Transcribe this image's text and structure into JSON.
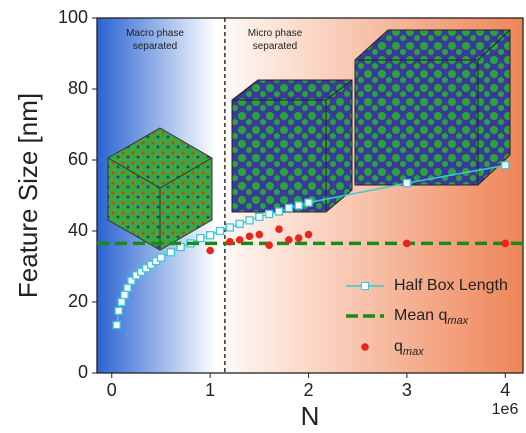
{
  "chart_data": {
    "type": "line",
    "xlabel": "N",
    "ylabel": "Feature Size [nm]",
    "x_offset_label": "1e6",
    "annotations": [
      "Macro phase\nseparated",
      "Micro phase\nseparated"
    ],
    "boundary_x": 1.15,
    "xlim": [
      -0.15,
      4.18
    ],
    "xticks": [
      0,
      1,
      2,
      3,
      4
    ],
    "ylim": [
      0,
      100
    ],
    "yticks": [
      0,
      20,
      40,
      60,
      80,
      100
    ],
    "series": [
      {
        "name": "Half Box Length",
        "color": "#3cc8d8",
        "style": "line-square",
        "x": [
          0.05,
          0.07,
          0.1,
          0.13,
          0.16,
          0.2,
          0.25,
          0.3,
          0.35,
          0.4,
          0.45,
          0.5,
          0.6,
          0.7,
          0.8,
          0.9,
          1.0,
          1.1,
          1.2,
          1.3,
          1.4,
          1.5,
          1.6,
          1.7,
          1.8,
          1.9,
          2.0,
          3.0,
          4.0
        ],
        "values": [
          13.5,
          17.5,
          20,
          22,
          24,
          26,
          27.5,
          28.5,
          29.5,
          30.5,
          31.5,
          32.5,
          34,
          35.5,
          36.5,
          38,
          38.8,
          40,
          41,
          42,
          43,
          44,
          44.8,
          45.5,
          46.5,
          47.2,
          48,
          53.5,
          58.5
        ]
      },
      {
        "name": "Mean q",
        "subscript": "max",
        "color": "#1a8a1a",
        "style": "hline",
        "values": [
          36.5
        ]
      },
      {
        "name": "q",
        "subscript": "max",
        "color": "#e8261c",
        "style": "dots",
        "x": [
          1.0,
          1.2,
          1.3,
          1.4,
          1.5,
          1.6,
          1.7,
          1.8,
          1.9,
          2.0,
          3.0,
          4.0
        ],
        "values": [
          34.5,
          37,
          37.5,
          38.5,
          39,
          36,
          40.5,
          37.5,
          38,
          39,
          36.5,
          36.5
        ]
      }
    ]
  }
}
